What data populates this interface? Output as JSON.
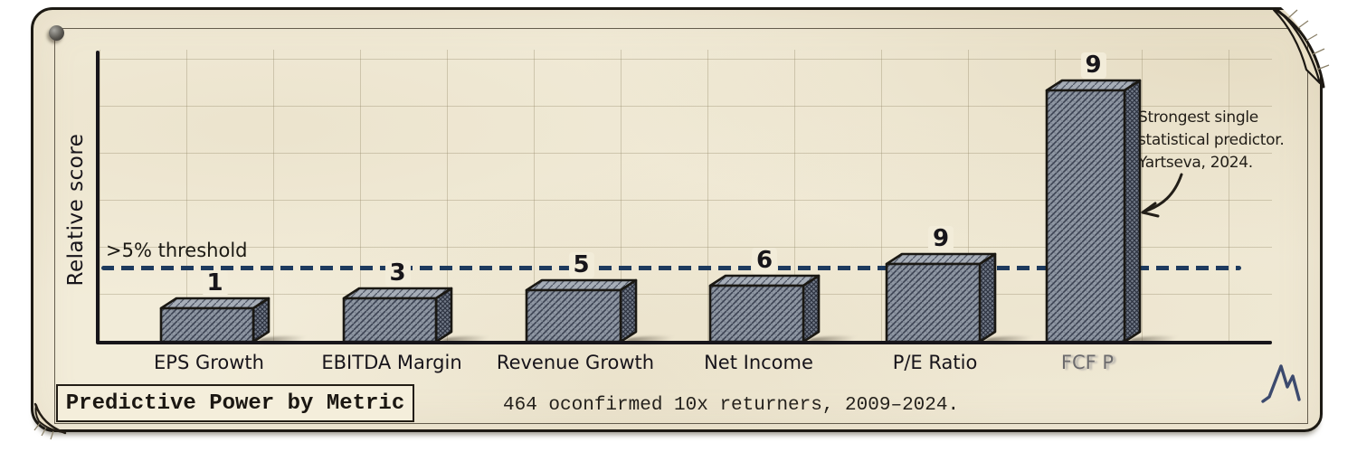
{
  "chart_data": {
    "type": "bar",
    "title": "Predictive Power by Metric",
    "caption": "464 oconfirmed 10x returners, 2009–2024.",
    "ylabel": "Relative score",
    "xlabel": "",
    "categories": [
      "EPS Growth",
      "EBITDA Margin",
      "Revenue Growth",
      "Net Income",
      "P/E Ratio",
      "FCF P"
    ],
    "values": [
      1,
      3,
      5,
      6,
      9,
      9
    ],
    "ylim": [
      0,
      10
    ],
    "grid": true,
    "threshold": {
      "label": ">5% threshold",
      "value": 5
    },
    "annotation": {
      "text": "Strongest single\nstatistical predictor.\nYartseva, 2024.",
      "arrow_to": "FCF P"
    }
  },
  "colors": {
    "paper": "#f2ecd9",
    "ink": "#1f1c17",
    "bar_fill": "#8e96a2",
    "bar_hatch": "#3b4252",
    "threshold_line": "#1d3a5e",
    "logo": "#3c4a6e"
  },
  "icons": {
    "pin": "pin-icon",
    "logo": "mountain-logo-icon",
    "arrow": "curved-arrow-icon",
    "fold_top_right": "page-curl-icon",
    "fold_bottom_left": "page-curl-icon"
  }
}
